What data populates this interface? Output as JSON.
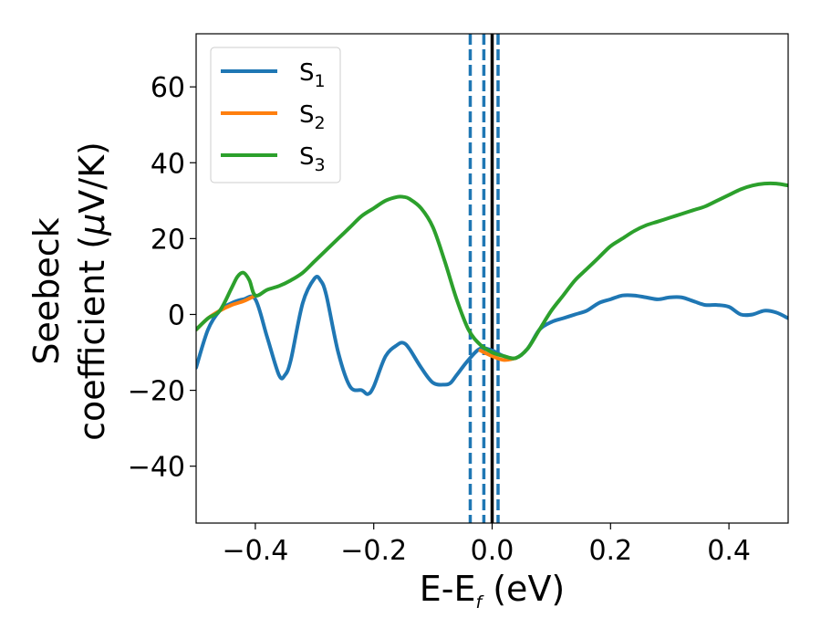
{
  "chart_data": {
    "type": "line",
    "title": "",
    "xlabel": {
      "main": "E-E",
      "sub": "f",
      "tail": " (eV)"
    },
    "ylabel": {
      "line1": "Seebeck",
      "line2_prefix": "coefficient  (",
      "mu": "μ",
      "line2_suffix": "V/K)"
    },
    "xlim": [
      -0.5,
      0.5
    ],
    "ylim": [
      -55,
      74
    ],
    "xticks": [
      -0.4,
      -0.2,
      0.0,
      0.2,
      0.4
    ],
    "xtick_labels": [
      "−0.4",
      "−0.2",
      "0.0",
      "0.2",
      "0.4"
    ],
    "yticks": [
      -40,
      -20,
      0,
      20,
      40,
      60
    ],
    "ytick_labels": [
      "−40",
      "−20",
      "0",
      "20",
      "40",
      "60"
    ],
    "grid": false,
    "legend_position": "top-left",
    "series": [
      {
        "name": "S",
        "sub": "1",
        "color": "#1f77b4",
        "x": [
          -0.5,
          -0.48,
          -0.46,
          -0.44,
          -0.42,
          -0.4,
          -0.38,
          -0.36,
          -0.35,
          -0.34,
          -0.32,
          -0.3,
          -0.29,
          -0.28,
          -0.26,
          -0.24,
          -0.22,
          -0.21,
          -0.2,
          -0.18,
          -0.16,
          -0.15,
          -0.14,
          -0.12,
          -0.1,
          -0.08,
          -0.07,
          -0.06,
          -0.04,
          -0.02,
          0.0,
          0.02,
          0.04,
          0.06,
          0.08,
          0.1,
          0.12,
          0.14,
          0.16,
          0.18,
          0.2,
          0.22,
          0.24,
          0.26,
          0.28,
          0.3,
          0.32,
          0.34,
          0.36,
          0.38,
          0.4,
          0.42,
          0.44,
          0.46,
          0.48,
          0.5
        ],
        "y": [
          -14,
          -4,
          1,
          3,
          4,
          4,
          -6,
          -16,
          -16,
          -12,
          3,
          9.5,
          9,
          5,
          -10,
          -19,
          -20,
          -21,
          -19,
          -11,
          -8,
          -7.5,
          -9,
          -14,
          -18,
          -18.5,
          -18,
          -16,
          -12,
          -9,
          -9.5,
          -11,
          -11.5,
          -9,
          -4,
          -2,
          -1,
          0,
          1,
          3,
          4,
          5,
          5,
          4.5,
          4,
          4.5,
          4.5,
          3.5,
          2.5,
          2.5,
          2,
          0,
          0,
          1,
          0.5,
          -1
        ]
      },
      {
        "name": "S",
        "sub": "2",
        "color": "#ff7f0e",
        "x": [
          -0.5,
          -0.48,
          -0.46,
          -0.44,
          -0.42,
          -0.4,
          -0.02,
          0.0,
          0.02,
          0.04
        ],
        "y": [
          -4,
          -1,
          1,
          2.5,
          3.5,
          5,
          -9.5,
          -11,
          -12,
          -11.5
        ]
      },
      {
        "name": "S",
        "sub": "3",
        "color": "#2ca02c",
        "x": [
          -0.5,
          -0.48,
          -0.46,
          -0.44,
          -0.43,
          -0.42,
          -0.41,
          -0.4,
          -0.38,
          -0.36,
          -0.34,
          -0.32,
          -0.3,
          -0.28,
          -0.26,
          -0.24,
          -0.22,
          -0.2,
          -0.18,
          -0.16,
          -0.15,
          -0.14,
          -0.12,
          -0.1,
          -0.08,
          -0.06,
          -0.04,
          -0.02,
          0.0,
          0.02,
          0.04,
          0.06,
          0.08,
          0.1,
          0.12,
          0.14,
          0.16,
          0.18,
          0.2,
          0.22,
          0.24,
          0.26,
          0.28,
          0.3,
          0.32,
          0.34,
          0.36,
          0.38,
          0.4,
          0.42,
          0.44,
          0.46,
          0.48,
          0.5
        ],
        "y": [
          -4,
          -1,
          1,
          7,
          10,
          11,
          9,
          5,
          6.5,
          7.5,
          9,
          11,
          14,
          17,
          20,
          23,
          26,
          28,
          30,
          31,
          31,
          30.5,
          28,
          23,
          14,
          4,
          -4,
          -8,
          -10,
          -11,
          -11.5,
          -9,
          -4,
          1,
          5,
          9,
          12,
          15,
          18,
          20,
          22,
          23.5,
          24.5,
          25.5,
          26.5,
          27.5,
          28.5,
          30,
          31.5,
          33,
          34,
          34.5,
          34.5,
          34
        ]
      }
    ],
    "vlines": [
      {
        "x": -0.037,
        "style": "dashed",
        "color": "#1f77b4"
      },
      {
        "x": -0.014,
        "style": "dashed",
        "color": "#1f77b4"
      },
      {
        "x": 0.0,
        "style": "solid",
        "color": "#000000"
      },
      {
        "x": 0.01,
        "style": "dashed",
        "color": "#1f77b4"
      }
    ]
  }
}
